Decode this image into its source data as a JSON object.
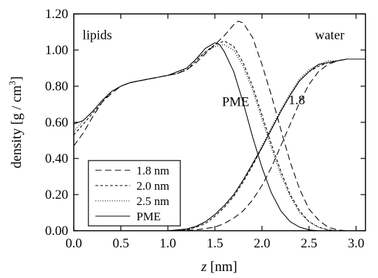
{
  "chart_data": {
    "type": "line",
    "xlabel_var": "z",
    "xlabel_unit": " [nm]",
    "ylabel_main": "density [g / cm",
    "ylabel_sup": "3",
    "ylabel_end": "]",
    "xlim": [
      0.0,
      3.1
    ],
    "ylim": [
      0.0,
      1.2
    ],
    "xticks": [
      "0.0",
      "0.5",
      "1.0",
      "1.5",
      "2.0",
      "2.5",
      "3.0"
    ],
    "yticks": [
      "0.00",
      "0.20",
      "0.40",
      "0.60",
      "0.80",
      "1.00",
      "1.20"
    ],
    "grid": false,
    "legend_position": "bottom-left",
    "annotations": [
      {
        "text": "lipids",
        "x": 0.25,
        "y": 1.06
      },
      {
        "text": "water",
        "x": 2.72,
        "y": 1.06
      },
      {
        "text": "PME",
        "x": 1.72,
        "y": 0.69
      },
      {
        "text": "1.8",
        "x": 2.37,
        "y": 0.7
      }
    ],
    "series": [
      {
        "name": "1.8 nm",
        "dash": "dashed",
        "lipids": [
          [
            0.0,
            0.47
          ],
          [
            0.1,
            0.54
          ],
          [
            0.2,
            0.63
          ],
          [
            0.3,
            0.71
          ],
          [
            0.4,
            0.76
          ],
          [
            0.5,
            0.8
          ],
          [
            0.6,
            0.82
          ],
          [
            0.7,
            0.83
          ],
          [
            0.8,
            0.84
          ],
          [
            0.9,
            0.85
          ],
          [
            1.0,
            0.86
          ],
          [
            1.1,
            0.87
          ],
          [
            1.2,
            0.89
          ],
          [
            1.3,
            0.93
          ],
          [
            1.4,
            0.98
          ],
          [
            1.5,
            1.03
          ],
          [
            1.6,
            1.08
          ],
          [
            1.7,
            1.14
          ],
          [
            1.75,
            1.16
          ],
          [
            1.8,
            1.15
          ],
          [
            1.9,
            1.07
          ],
          [
            2.0,
            0.92
          ],
          [
            2.1,
            0.75
          ],
          [
            2.2,
            0.56
          ],
          [
            2.3,
            0.38
          ],
          [
            2.4,
            0.23
          ],
          [
            2.5,
            0.12
          ],
          [
            2.6,
            0.06
          ],
          [
            2.7,
            0.02
          ],
          [
            2.8,
            0.005
          ],
          [
            2.9,
            0.0
          ],
          [
            3.0,
            0.0
          ],
          [
            3.1,
            0.0
          ]
        ],
        "water": [
          [
            1.1,
            0.0
          ],
          [
            1.3,
            0.005
          ],
          [
            1.5,
            0.02
          ],
          [
            1.6,
            0.04
          ],
          [
            1.7,
            0.07
          ],
          [
            1.8,
            0.11
          ],
          [
            1.9,
            0.17
          ],
          [
            2.0,
            0.25
          ],
          [
            2.1,
            0.35
          ],
          [
            2.2,
            0.47
          ],
          [
            2.3,
            0.59
          ],
          [
            2.4,
            0.71
          ],
          [
            2.5,
            0.81
          ],
          [
            2.6,
            0.88
          ],
          [
            2.7,
            0.92
          ],
          [
            2.8,
            0.94
          ],
          [
            2.9,
            0.95
          ],
          [
            3.0,
            0.95
          ],
          [
            3.1,
            0.95
          ]
        ]
      },
      {
        "name": "2.0 nm",
        "dash": "short-dashed",
        "lipids": [
          [
            0.0,
            0.53
          ],
          [
            0.1,
            0.59
          ],
          [
            0.2,
            0.65
          ],
          [
            0.3,
            0.71
          ],
          [
            0.4,
            0.77
          ],
          [
            0.5,
            0.8
          ],
          [
            0.6,
            0.82
          ],
          [
            0.7,
            0.83
          ],
          [
            0.8,
            0.84
          ],
          [
            0.9,
            0.85
          ],
          [
            1.0,
            0.86
          ],
          [
            1.1,
            0.87
          ],
          [
            1.2,
            0.89
          ],
          [
            1.3,
            0.94
          ],
          [
            1.4,
            0.99
          ],
          [
            1.5,
            1.03
          ],
          [
            1.6,
            1.05
          ],
          [
            1.7,
            1.02
          ],
          [
            1.8,
            0.93
          ],
          [
            1.9,
            0.8
          ],
          [
            2.0,
            0.64
          ],
          [
            2.1,
            0.48
          ],
          [
            2.2,
            0.33
          ],
          [
            2.3,
            0.2
          ],
          [
            2.4,
            0.11
          ],
          [
            2.5,
            0.05
          ],
          [
            2.6,
            0.02
          ],
          [
            2.7,
            0.005
          ],
          [
            2.8,
            0.0
          ],
          [
            3.0,
            0.0
          ],
          [
            3.1,
            0.0
          ]
        ],
        "water": [
          [
            1.0,
            0.0
          ],
          [
            1.2,
            0.005
          ],
          [
            1.3,
            0.02
          ],
          [
            1.4,
            0.04
          ],
          [
            1.5,
            0.08
          ],
          [
            1.6,
            0.13
          ],
          [
            1.7,
            0.19
          ],
          [
            1.8,
            0.27
          ],
          [
            1.9,
            0.36
          ],
          [
            2.0,
            0.46
          ],
          [
            2.1,
            0.56
          ],
          [
            2.2,
            0.66
          ],
          [
            2.3,
            0.75
          ],
          [
            2.4,
            0.83
          ],
          [
            2.5,
            0.88
          ],
          [
            2.6,
            0.91
          ],
          [
            2.7,
            0.93
          ],
          [
            2.8,
            0.94
          ],
          [
            2.9,
            0.95
          ],
          [
            3.0,
            0.95
          ],
          [
            3.1,
            0.95
          ]
        ]
      },
      {
        "name": "2.5 nm",
        "dash": "dotted",
        "lipids": [
          [
            0.0,
            0.55
          ],
          [
            0.1,
            0.61
          ],
          [
            0.2,
            0.66
          ],
          [
            0.3,
            0.72
          ],
          [
            0.4,
            0.77
          ],
          [
            0.5,
            0.8
          ],
          [
            0.6,
            0.82
          ],
          [
            0.7,
            0.83
          ],
          [
            0.8,
            0.84
          ],
          [
            0.9,
            0.85
          ],
          [
            1.0,
            0.86
          ],
          [
            1.1,
            0.87
          ],
          [
            1.2,
            0.9
          ],
          [
            1.3,
            0.95
          ],
          [
            1.4,
            0.99
          ],
          [
            1.5,
            1.02
          ],
          [
            1.6,
            1.03
          ],
          [
            1.7,
            1.0
          ],
          [
            1.8,
            0.91
          ],
          [
            1.9,
            0.78
          ],
          [
            2.0,
            0.62
          ],
          [
            2.1,
            0.46
          ],
          [
            2.2,
            0.31
          ],
          [
            2.3,
            0.19
          ],
          [
            2.4,
            0.1
          ],
          [
            2.5,
            0.05
          ],
          [
            2.6,
            0.02
          ],
          [
            2.7,
            0.005
          ],
          [
            2.8,
            0.0
          ],
          [
            3.0,
            0.0
          ],
          [
            3.1,
            0.0
          ]
        ],
        "water": [
          [
            1.0,
            0.0
          ],
          [
            1.2,
            0.005
          ],
          [
            1.3,
            0.02
          ],
          [
            1.4,
            0.05
          ],
          [
            1.5,
            0.09
          ],
          [
            1.6,
            0.14
          ],
          [
            1.7,
            0.2
          ],
          [
            1.8,
            0.28
          ],
          [
            1.9,
            0.37
          ],
          [
            2.0,
            0.47
          ],
          [
            2.1,
            0.57
          ],
          [
            2.2,
            0.67
          ],
          [
            2.3,
            0.76
          ],
          [
            2.4,
            0.84
          ],
          [
            2.5,
            0.89
          ],
          [
            2.6,
            0.92
          ],
          [
            2.7,
            0.94
          ],
          [
            2.8,
            0.94
          ],
          [
            2.9,
            0.95
          ],
          [
            3.0,
            0.95
          ],
          [
            3.1,
            0.95
          ]
        ]
      },
      {
        "name": "PME",
        "dash": "solid",
        "lipids": [
          [
            0.0,
            0.59
          ],
          [
            0.1,
            0.61
          ],
          [
            0.2,
            0.66
          ],
          [
            0.3,
            0.72
          ],
          [
            0.4,
            0.77
          ],
          [
            0.5,
            0.8
          ],
          [
            0.6,
            0.82
          ],
          [
            0.7,
            0.83
          ],
          [
            0.8,
            0.84
          ],
          [
            0.9,
            0.85
          ],
          [
            1.0,
            0.86
          ],
          [
            1.1,
            0.88
          ],
          [
            1.2,
            0.9
          ],
          [
            1.3,
            0.95
          ],
          [
            1.4,
            1.01
          ],
          [
            1.5,
            1.04
          ],
          [
            1.55,
            1.03
          ],
          [
            1.6,
            0.99
          ],
          [
            1.7,
            0.88
          ],
          [
            1.8,
            0.71
          ],
          [
            1.9,
            0.52
          ],
          [
            2.0,
            0.35
          ],
          [
            2.1,
            0.21
          ],
          [
            2.2,
            0.11
          ],
          [
            2.3,
            0.05
          ],
          [
            2.4,
            0.02
          ],
          [
            2.5,
            0.005
          ],
          [
            2.6,
            0.0
          ],
          [
            3.0,
            0.0
          ],
          [
            3.1,
            0.0
          ]
        ],
        "water": [
          [
            1.0,
            0.0
          ],
          [
            1.2,
            0.01
          ],
          [
            1.3,
            0.025
          ],
          [
            1.4,
            0.05
          ],
          [
            1.5,
            0.09
          ],
          [
            1.6,
            0.14
          ],
          [
            1.7,
            0.2
          ],
          [
            1.8,
            0.28
          ],
          [
            1.9,
            0.37
          ],
          [
            2.0,
            0.46
          ],
          [
            2.1,
            0.56
          ],
          [
            2.2,
            0.66
          ],
          [
            2.3,
            0.75
          ],
          [
            2.4,
            0.83
          ],
          [
            2.5,
            0.88
          ],
          [
            2.6,
            0.92
          ],
          [
            2.7,
            0.93
          ],
          [
            2.8,
            0.94
          ],
          [
            2.9,
            0.95
          ],
          [
            3.0,
            0.95
          ],
          [
            3.1,
            0.95
          ]
        ]
      }
    ]
  }
}
